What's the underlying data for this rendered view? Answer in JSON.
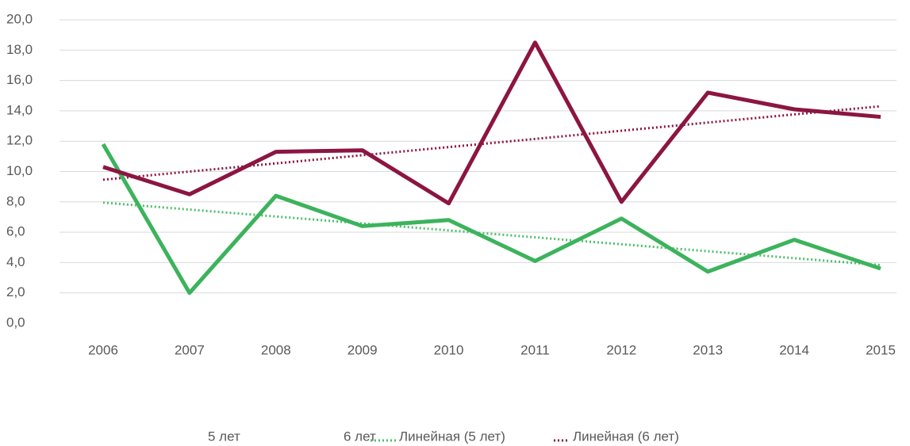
{
  "chart_data": {
    "type": "line",
    "categories": [
      "2006",
      "2007",
      "2008",
      "2009",
      "2010",
      "2011",
      "2012",
      "2013",
      "2014",
      "2015"
    ],
    "series": [
      {
        "name": "5 лет",
        "color": "#3cb35c",
        "values": [
          11.8,
          2.0,
          8.4,
          6.4,
          6.8,
          4.1,
          6.9,
          3.4,
          5.5,
          3.6
        ]
      },
      {
        "name": "6 лет",
        "color": "#8c1541",
        "values": [
          10.3,
          8.5,
          11.3,
          11.4,
          7.9,
          18.5,
          8.0,
          15.2,
          14.1,
          13.6
        ]
      }
    ],
    "trendlines": [
      {
        "name": "Линейная (5 лет)",
        "series": 0,
        "kind": "linear",
        "color": "#4fbf6a"
      },
      {
        "name": "Линейная (6 лет)",
        "series": 1,
        "kind": "linear",
        "color": "#8c1541"
      }
    ],
    "ylim": [
      0,
      20
    ],
    "yticks": [
      {
        "value": 0,
        "label": "0,0"
      },
      {
        "value": 2,
        "label": "2,0"
      },
      {
        "value": 4,
        "label": "4,0"
      },
      {
        "value": 6,
        "label": "6,0"
      },
      {
        "value": 8,
        "label": "8,0"
      },
      {
        "value": 10,
        "label": "10,0"
      },
      {
        "value": 12,
        "label": "12,0"
      },
      {
        "value": 14,
        "label": "14,0"
      },
      {
        "value": 16,
        "label": "16,0"
      },
      {
        "value": 18,
        "label": "18,0"
      },
      {
        "value": 20,
        "label": "20,0"
      }
    ],
    "grid": true,
    "legend": "bottom"
  }
}
